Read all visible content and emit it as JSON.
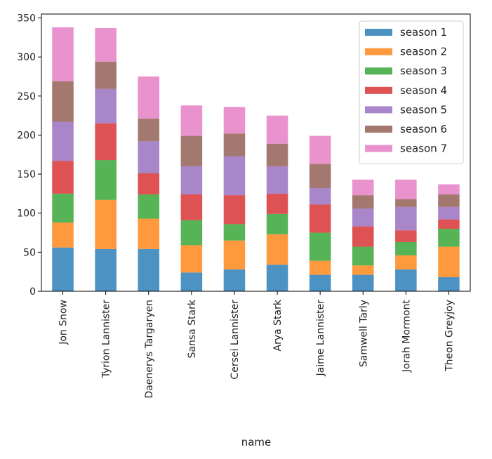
{
  "chart_data": {
    "type": "bar",
    "stacked": true,
    "title": "",
    "xlabel": "name",
    "ylabel": "",
    "ylim": [
      0,
      355
    ],
    "yticks": [
      0,
      50,
      100,
      150,
      200,
      250,
      300,
      350
    ],
    "grid": false,
    "legend_position": "top-right",
    "categories": [
      "Jon Snow",
      "Tyrion Lannister",
      "Daenerys Targaryen",
      "Sansa Stark",
      "Cersei Lannister",
      "Arya Stark",
      "Jaime Lannister",
      "Samwell Tarly",
      "Jorah Mormont",
      "Theon Greyjoy"
    ],
    "series": [
      {
        "name": "season 1",
        "color": "#1f77b4",
        "values": [
          56,
          54,
          54,
          24,
          28,
          34,
          21,
          21,
          28,
          18
        ]
      },
      {
        "name": "season 2",
        "color": "#ff7f0e",
        "values": [
          32,
          63,
          39,
          35,
          37,
          39,
          18,
          12,
          18,
          39
        ]
      },
      {
        "name": "season 3",
        "color": "#2ca02c",
        "values": [
          37,
          51,
          31,
          32,
          21,
          26,
          36,
          24,
          17,
          23
        ]
      },
      {
        "name": "season 4",
        "color": "#d62728",
        "values": [
          42,
          47,
          27,
          33,
          37,
          26,
          36,
          26,
          15,
          12
        ]
      },
      {
        "name": "season 5",
        "color": "#9467bd",
        "values": [
          50,
          44,
          41,
          36,
          50,
          35,
          21,
          23,
          30,
          16
        ]
      },
      {
        "name": "season 6",
        "color": "#8c564b",
        "values": [
          52,
          35,
          29,
          39,
          29,
          29,
          31,
          17,
          10,
          16
        ]
      },
      {
        "name": "season 7",
        "color": "#e377c2",
        "values": [
          69,
          43,
          54,
          39,
          34,
          36,
          36,
          20,
          25,
          13
        ]
      }
    ]
  }
}
